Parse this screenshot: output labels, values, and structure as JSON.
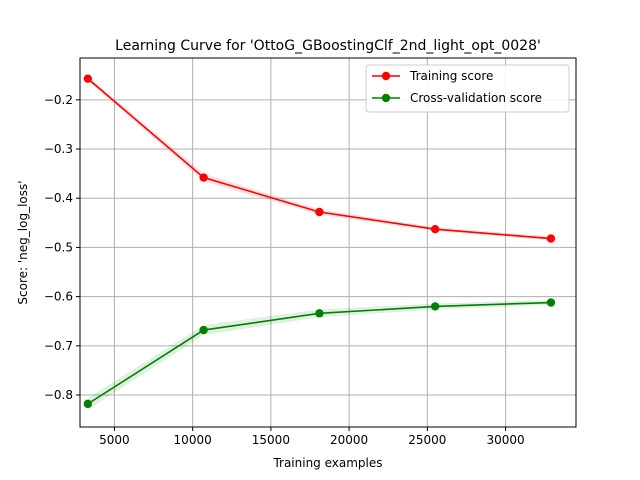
{
  "chart_data": {
    "type": "line",
    "title": "Learning Curve for 'OttoG_GBoostingClf_2nd_light_opt_0028'",
    "xlabel": "Training examples",
    "ylabel": "Score: 'neg_log_loss'",
    "xlim": [
      2800,
      34500
    ],
    "ylim": [
      -0.865,
      -0.115
    ],
    "xticks": [
      5000,
      10000,
      15000,
      20000,
      25000,
      30000
    ],
    "xtick_labels": [
      "5000",
      "10000",
      "15000",
      "20000",
      "25000",
      "30000"
    ],
    "yticks": [
      -0.2,
      -0.3,
      -0.4,
      -0.5,
      -0.6,
      -0.7,
      -0.8
    ],
    "ytick_labels": [
      "−0.2",
      "−0.3",
      "−0.4",
      "−0.5",
      "−0.6",
      "−0.7",
      "−0.8"
    ],
    "grid": true,
    "legend_position": "top-right",
    "x": [
      3300,
      10700,
      18100,
      25500,
      32900
    ],
    "series": [
      {
        "name": "Training score",
        "color": "#ff0000",
        "values": [
          -0.157,
          -0.358,
          -0.428,
          -0.463,
          -0.482
        ],
        "band": [
          0.004,
          0.008,
          0.005,
          0.004,
          0.004
        ]
      },
      {
        "name": "Cross-validation score",
        "color": "#008000",
        "values": [
          -0.818,
          -0.668,
          -0.634,
          -0.62,
          -0.612
        ],
        "band": [
          0.012,
          0.01,
          0.008,
          0.006,
          0.005
        ]
      }
    ]
  }
}
